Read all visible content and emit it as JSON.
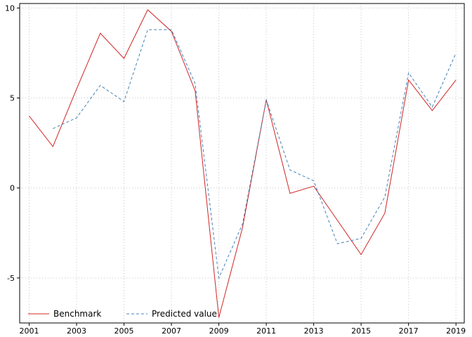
{
  "chart_data": {
    "type": "line",
    "title": "",
    "xlabel": "",
    "ylabel": "",
    "x": [
      2001,
      2002,
      2003,
      2004,
      2005,
      2006,
      2007,
      2008,
      2009,
      2010,
      2011,
      2012,
      2013,
      2014,
      2015,
      2016,
      2017,
      2018,
      2019
    ],
    "series": [
      {
        "name": "Benchmark",
        "color": "#d02525",
        "style": "solid",
        "values": [
          4.0,
          2.3,
          5.5,
          8.6,
          7.2,
          9.9,
          8.7,
          5.4,
          -7.2,
          -2.2,
          4.9,
          -0.3,
          0.1,
          -1.8,
          -3.7,
          -1.4,
          6.0,
          4.3,
          6.0
        ]
      },
      {
        "name": "Predicted value",
        "color": "#4682b4",
        "style": "dashed",
        "values": [
          null,
          3.3,
          3.9,
          5.7,
          4.8,
          8.8,
          8.8,
          5.8,
          -5.0,
          -2.0,
          4.9,
          1.0,
          0.4,
          -3.1,
          -2.8,
          -0.5,
          6.4,
          4.5,
          7.5
        ]
      }
    ],
    "x_ticks": [
      2001,
      2003,
      2005,
      2007,
      2009,
      2011,
      2013,
      2015,
      2017,
      2019
    ],
    "y_ticks": [
      -5,
      0,
      5,
      10
    ],
    "xlim": [
      2000.6,
      2019.35
    ],
    "ylim": [
      -7.5,
      10.25
    ],
    "grid": true,
    "grid_color": "#c6c6c6",
    "axis_color": "#000000",
    "legend_position": "bottom-left",
    "legend": [
      "Benchmark",
      "Predicted value"
    ]
  }
}
